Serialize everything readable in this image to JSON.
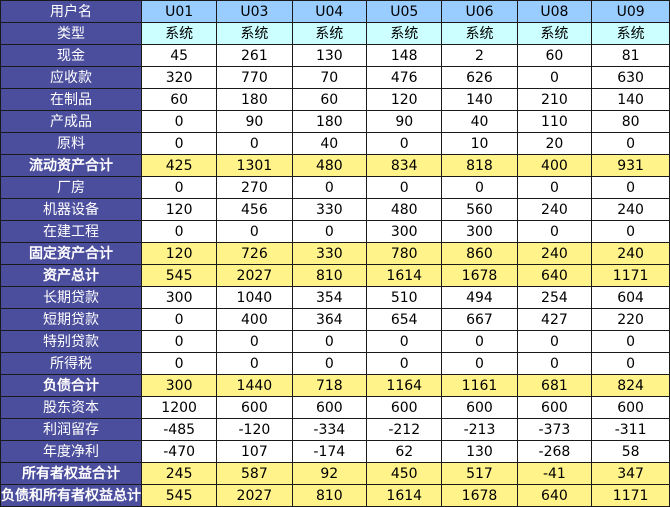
{
  "header": {
    "label": "用户名",
    "columns": [
      "U01",
      "U03",
      "U04",
      "U05",
      "U06",
      "U08",
      "U09"
    ]
  },
  "type_row": {
    "label": "类型",
    "values": [
      "系统",
      "系统",
      "系统",
      "系统",
      "系统",
      "系统",
      "系统"
    ]
  },
  "rows": [
    {
      "label": "现金",
      "summary": false,
      "values": [
        "45",
        "261",
        "130",
        "148",
        "2",
        "60",
        "81"
      ]
    },
    {
      "label": "应收款",
      "summary": false,
      "values": [
        "320",
        "770",
        "70",
        "476",
        "626",
        "0",
        "630"
      ]
    },
    {
      "label": "在制品",
      "summary": false,
      "values": [
        "60",
        "180",
        "60",
        "120",
        "140",
        "210",
        "140"
      ]
    },
    {
      "label": "产成品",
      "summary": false,
      "values": [
        "0",
        "90",
        "180",
        "90",
        "40",
        "110",
        "80"
      ]
    },
    {
      "label": "原料",
      "summary": false,
      "values": [
        "0",
        "0",
        "40",
        "0",
        "10",
        "20",
        "0"
      ]
    },
    {
      "label": "流动资产合计",
      "summary": true,
      "values": [
        "425",
        "1301",
        "480",
        "834",
        "818",
        "400",
        "931"
      ]
    },
    {
      "label": "厂房",
      "summary": false,
      "values": [
        "0",
        "270",
        "0",
        "0",
        "0",
        "0",
        "0"
      ]
    },
    {
      "label": "机器设备",
      "summary": false,
      "values": [
        "120",
        "456",
        "330",
        "480",
        "560",
        "240",
        "240"
      ]
    },
    {
      "label": "在建工程",
      "summary": false,
      "values": [
        "0",
        "0",
        "0",
        "300",
        "300",
        "0",
        "0"
      ]
    },
    {
      "label": "固定资产合计",
      "summary": true,
      "values": [
        "120",
        "726",
        "330",
        "780",
        "860",
        "240",
        "240"
      ]
    },
    {
      "label": "资产总计",
      "summary": true,
      "values": [
        "545",
        "2027",
        "810",
        "1614",
        "1678",
        "640",
        "1171"
      ]
    },
    {
      "label": "长期贷款",
      "summary": false,
      "values": [
        "300",
        "1040",
        "354",
        "510",
        "494",
        "254",
        "604"
      ]
    },
    {
      "label": "短期贷款",
      "summary": false,
      "values": [
        "0",
        "400",
        "364",
        "654",
        "667",
        "427",
        "220"
      ]
    },
    {
      "label": "特别贷款",
      "summary": false,
      "values": [
        "0",
        "0",
        "0",
        "0",
        "0",
        "0",
        "0"
      ]
    },
    {
      "label": "所得税",
      "summary": false,
      "values": [
        "0",
        "0",
        "0",
        "0",
        "0",
        "0",
        "0"
      ]
    },
    {
      "label": "负债合计",
      "summary": true,
      "values": [
        "300",
        "1440",
        "718",
        "1164",
        "1161",
        "681",
        "824"
      ]
    },
    {
      "label": "股东资本",
      "summary": false,
      "values": [
        "1200",
        "600",
        "600",
        "600",
        "600",
        "600",
        "600"
      ]
    },
    {
      "label": "利润留存",
      "summary": false,
      "values": [
        "-485",
        "-120",
        "-334",
        "-212",
        "-213",
        "-373",
        "-311"
      ]
    },
    {
      "label": "年度净利",
      "summary": false,
      "values": [
        "-470",
        "107",
        "-174",
        "62",
        "130",
        "-268",
        "58"
      ]
    },
    {
      "label": "所有者权益合计",
      "summary": true,
      "values": [
        "245",
        "587",
        "92",
        "450",
        "517",
        "-41",
        "347"
      ]
    },
    {
      "label": "负债和所有者权益总计",
      "summary": true,
      "values": [
        "545",
        "2027",
        "810",
        "1614",
        "1678",
        "640",
        "1171"
      ]
    }
  ]
}
